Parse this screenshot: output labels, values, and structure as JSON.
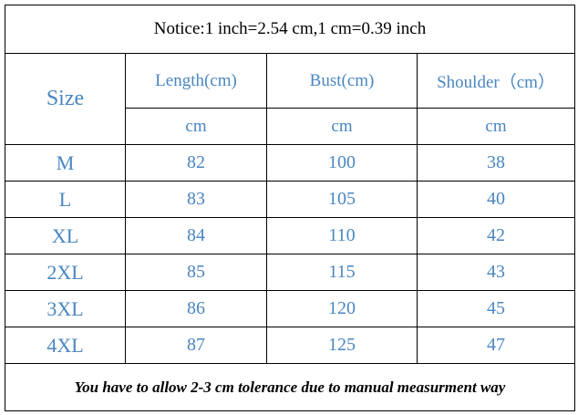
{
  "notice": "Notice:1 inch=2.54 cm,1 cm=0.39 inch",
  "header": {
    "size": "Size",
    "columns": [
      "Length(cm)",
      "Bust(cm)",
      "Shoulder（cm）"
    ],
    "units": [
      "cm",
      "cm",
      "cm"
    ]
  },
  "table": {
    "rows": [
      [
        "M",
        82,
        100,
        38
      ],
      [
        "L",
        83,
        105,
        40
      ],
      [
        "XL",
        84,
        110,
        42
      ],
      [
        "2XL",
        85,
        115,
        43
      ],
      [
        "3XL",
        86,
        120,
        45
      ],
      [
        "4XL",
        87,
        125,
        47
      ]
    ]
  },
  "footer": "You have to allow 2-3 cm tolerance due to manual measurment way"
}
